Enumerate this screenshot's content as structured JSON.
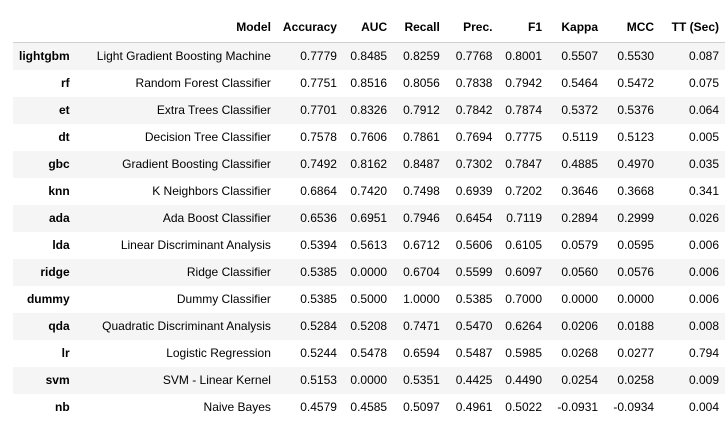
{
  "table": {
    "columns": [
      "",
      "Model",
      "Accuracy",
      "AUC",
      "Recall",
      "Prec.",
      "F1",
      "Kappa",
      "MCC",
      "TT (Sec)"
    ],
    "rows": [
      [
        "lightgbm",
        "Light Gradient Boosting Machine",
        "0.7779",
        "0.8485",
        "0.8259",
        "0.7768",
        "0.8001",
        "0.5507",
        "0.5530",
        "0.087"
      ],
      [
        "rf",
        "Random Forest Classifier",
        "0.7751",
        "0.8516",
        "0.8056",
        "0.7838",
        "0.7942",
        "0.5464",
        "0.5472",
        "0.075"
      ],
      [
        "et",
        "Extra Trees Classifier",
        "0.7701",
        "0.8326",
        "0.7912",
        "0.7842",
        "0.7874",
        "0.5372",
        "0.5376",
        "0.064"
      ],
      [
        "dt",
        "Decision Tree Classifier",
        "0.7578",
        "0.7606",
        "0.7861",
        "0.7694",
        "0.7775",
        "0.5119",
        "0.5123",
        "0.005"
      ],
      [
        "gbc",
        "Gradient Boosting Classifier",
        "0.7492",
        "0.8162",
        "0.8487",
        "0.7302",
        "0.7847",
        "0.4885",
        "0.4970",
        "0.035"
      ],
      [
        "knn",
        "K Neighbors Classifier",
        "0.6864",
        "0.7420",
        "0.7498",
        "0.6939",
        "0.7202",
        "0.3646",
        "0.3668",
        "0.341"
      ],
      [
        "ada",
        "Ada Boost Classifier",
        "0.6536",
        "0.6951",
        "0.7946",
        "0.6454",
        "0.7119",
        "0.2894",
        "0.2999",
        "0.026"
      ],
      [
        "lda",
        "Linear Discriminant Analysis",
        "0.5394",
        "0.5613",
        "0.6712",
        "0.5606",
        "0.6105",
        "0.0579",
        "0.0595",
        "0.006"
      ],
      [
        "ridge",
        "Ridge Classifier",
        "0.5385",
        "0.0000",
        "0.6704",
        "0.5599",
        "0.6097",
        "0.0560",
        "0.0576",
        "0.006"
      ],
      [
        "dummy",
        "Dummy Classifier",
        "0.5385",
        "0.5000",
        "1.0000",
        "0.5385",
        "0.7000",
        "0.0000",
        "0.0000",
        "0.006"
      ],
      [
        "qda",
        "Quadratic Discriminant Analysis",
        "0.5284",
        "0.5208",
        "0.7471",
        "0.5470",
        "0.6264",
        "0.0206",
        "0.0188",
        "0.008"
      ],
      [
        "lr",
        "Logistic Regression",
        "0.5244",
        "0.5478",
        "0.6594",
        "0.5487",
        "0.5985",
        "0.0268",
        "0.0277",
        "0.794"
      ],
      [
        "svm",
        "SVM - Linear Kernel",
        "0.5153",
        "0.0000",
        "0.5351",
        "0.4425",
        "0.4490",
        "0.0254",
        "0.0258",
        "0.009"
      ],
      [
        "nb",
        "Naive Bayes",
        "0.4579",
        "0.4585",
        "0.5097",
        "0.4961",
        "0.5022",
        "-0.0931",
        "-0.0934",
        "0.004"
      ]
    ]
  },
  "colors": {
    "stripe": "#f5f5f5",
    "header_rule": "#cfcfcf"
  }
}
